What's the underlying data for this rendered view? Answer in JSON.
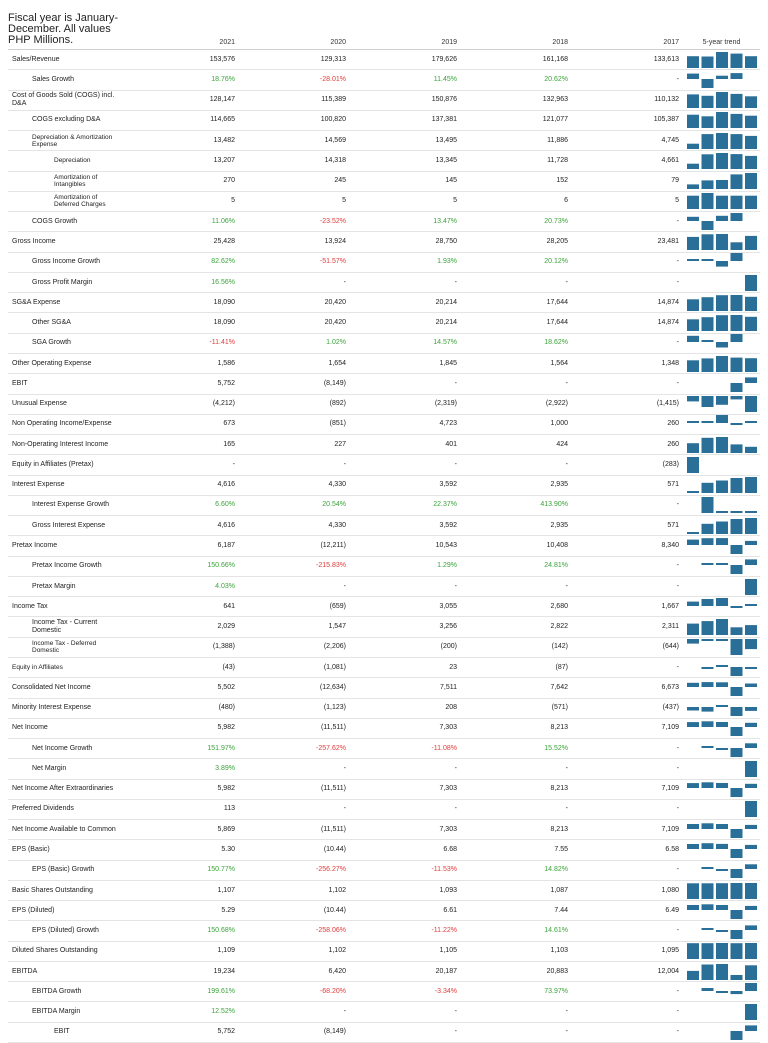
{
  "header": {
    "note": "Fiscal year is January-December. All values PHP Millions.",
    "years": [
      "2021",
      "2020",
      "2019",
      "2018",
      "2017"
    ],
    "trend_label": "5-year trend"
  },
  "colors": {
    "positive": "#3aa33a",
    "negative": "#e23b3b",
    "trend_bar": "#2a6f97"
  },
  "rows": [
    {
      "label": "Sales/Revenue",
      "indent": 0,
      "values": [
        "153,576",
        "129,313",
        "179,626",
        "161,168",
        "133,613"
      ],
      "trend": [
        0.74,
        0.72,
        1,
        0.9,
        0.74
      ]
    },
    {
      "label": "Sales Growth",
      "indent": 1,
      "values": [
        "18.76%",
        "-28.01%",
        "11.45%",
        "20.62%",
        "-"
      ],
      "trend": [
        0.67,
        -1,
        0.41,
        0.74,
        0
      ]
    },
    {
      "label": "Cost of Goods Sold (COGS) incl. D&A",
      "indent": 0,
      "values": [
        "128,147",
        "115,389",
        "150,876",
        "132,963",
        "110,132"
      ],
      "trend": [
        0.85,
        0.76,
        1,
        0.88,
        0.73
      ]
    },
    {
      "label": "COGS excluding D&A",
      "indent": 1,
      "values": [
        "114,665",
        "100,820",
        "137,381",
        "121,077",
        "105,387"
      ],
      "trend": [
        0.83,
        0.73,
        1,
        0.88,
        0.77
      ]
    },
    {
      "label": "Depreciation & Amortization Expense",
      "indent": 1,
      "values": [
        "13,482",
        "14,569",
        "13,495",
        "11,886",
        "4,745"
      ],
      "trend": [
        0.33,
        0.93,
        1,
        0.93,
        0.82
      ]
    },
    {
      "label": "Depreciation",
      "indent": 2,
      "values": [
        "13,207",
        "14,318",
        "13,345",
        "11,728",
        "4,661"
      ],
      "trend": [
        0.33,
        0.92,
        1,
        0.93,
        0.82
      ]
    },
    {
      "label": "Amortization of Intangibles",
      "indent": 2,
      "values": [
        "270",
        "245",
        "145",
        "152",
        "79"
      ],
      "trend": [
        0.29,
        0.54,
        0.56,
        0.91,
        1
      ]
    },
    {
      "label": "Amortization of Deferred Charges",
      "indent": 2,
      "values": [
        "5",
        "5",
        "5",
        "6",
        "5"
      ],
      "trend": [
        0.83,
        1,
        0.83,
        0.83,
        0.83
      ]
    },
    {
      "label": "COGS Growth",
      "indent": 1,
      "values": [
        "11.06%",
        "-23.52%",
        "13.47%",
        "20.73%",
        "-"
      ],
      "trend": [
        0.53,
        -1,
        0.65,
        1,
        0
      ]
    },
    {
      "label": "Gross Income",
      "indent": 0,
      "values": [
        "25,428",
        "13,924",
        "28,750",
        "28,205",
        "23,481"
      ],
      "trend": [
        0.82,
        0.98,
        1,
        0.48,
        0.88
      ]
    },
    {
      "label": "Gross Income Growth",
      "indent": 1,
      "values": [
        "82.62%",
        "-51.57%",
        "1.93%",
        "20.12%",
        "-"
      ],
      "trend": [
        0.24,
        0.02,
        -0.62,
        1,
        0
      ]
    },
    {
      "label": "Gross Profit Margin",
      "indent": 1,
      "values": [
        "16.56%",
        "-",
        "-",
        "-",
        "-"
      ],
      "trend": [
        0,
        0,
        0,
        0,
        1
      ]
    },
    {
      "label": "SG&A Expense",
      "indent": 0,
      "values": [
        "18,090",
        "20,420",
        "20,214",
        "17,644",
        "14,874"
      ],
      "trend": [
        0.73,
        0.86,
        0.99,
        1,
        0.89
      ]
    },
    {
      "label": "Other SG&A",
      "indent": 1,
      "values": [
        "18,090",
        "20,420",
        "20,214",
        "17,644",
        "14,874"
      ],
      "trend": [
        0.73,
        0.86,
        0.99,
        1,
        0.89
      ]
    },
    {
      "label": "SGA Growth",
      "indent": 1,
      "values": [
        "-11.41%",
        "1.02%",
        "14.57%",
        "18.62%",
        "-"
      ],
      "trend": [
        0.78,
        0.05,
        -0.61,
        1,
        0
      ]
    },
    {
      "label": "Other Operating Expense",
      "indent": 0,
      "values": [
        "1,586",
        "1,654",
        "1,845",
        "1,564",
        "1,348"
      ],
      "trend": [
        0.73,
        0.85,
        1,
        0.9,
        0.86
      ]
    },
    {
      "label": "EBIT",
      "indent": 0,
      "values": [
        "5,752",
        "(8,149)",
        "-",
        "-",
        "-"
      ],
      "trend": [
        0,
        0,
        0,
        -1,
        0.7
      ]
    },
    {
      "label": "Unusual Expense",
      "indent": 0,
      "values": [
        "(4,212)",
        "(892)",
        "(2,319)",
        "(2,922)",
        "(1,415)"
      ],
      "trend": [
        -0.34,
        -0.69,
        -0.55,
        -0.21,
        -1
      ]
    },
    {
      "label": "Non Operating Income/Expense",
      "indent": 0,
      "values": [
        "673",
        "(851)",
        "4,723",
        "1,000",
        "260"
      ],
      "trend": [
        0.06,
        0.21,
        1,
        -0.18,
        0.14
      ]
    },
    {
      "label": "Non-Operating Interest Income",
      "indent": 0,
      "values": [
        "165",
        "227",
        "401",
        "424",
        "260"
      ],
      "trend": [
        0.61,
        0.95,
        1,
        0.54,
        0.39
      ]
    },
    {
      "label": "Equity in Affiliates (Pretax)",
      "indent": 0,
      "values": [
        "-",
        "-",
        "-",
        "-",
        "(283)"
      ],
      "trend": [
        -1,
        0,
        0,
        0,
        0
      ]
    },
    {
      "label": "Interest Expense",
      "indent": 0,
      "values": [
        "4,616",
        "4,330",
        "3,592",
        "2,935",
        "571"
      ],
      "trend": [
        0.12,
        0.64,
        0.78,
        0.94,
        1
      ]
    },
    {
      "label": "Interest Expense Growth",
      "indent": 1,
      "values": [
        "6.60%",
        "20.54%",
        "22.37%",
        "413.90%",
        "-"
      ],
      "trend": [
        0,
        1,
        0.05,
        0.05,
        0.02
      ]
    },
    {
      "label": "Gross Interest Expense",
      "indent": 1,
      "values": [
        "4,616",
        "4,330",
        "3,592",
        "2,935",
        "571"
      ],
      "trend": [
        0.12,
        0.64,
        0.78,
        0.94,
        1
      ]
    },
    {
      "label": "Pretax Income",
      "indent": 0,
      "values": [
        "6,187",
        "(12,211)",
        "10,543",
        "10,408",
        "8,340"
      ],
      "trend": [
        0.68,
        0.85,
        0.86,
        -1,
        0.51
      ]
    },
    {
      "label": "Pretax Income Growth",
      "indent": 1,
      "values": [
        "150.66%",
        "-215.83%",
        "1.29%",
        "24.81%",
        "-"
      ],
      "trend": [
        0,
        0.11,
        0.01,
        -1,
        0.7
      ]
    },
    {
      "label": "Pretax Margin",
      "indent": 1,
      "values": [
        "4.03%",
        "-",
        "-",
        "-",
        "-"
      ],
      "trend": [
        0,
        0,
        0,
        0,
        1
      ]
    },
    {
      "label": "Income Tax",
      "indent": 0,
      "values": [
        "641",
        "(659)",
        "3,055",
        "2,680",
        "1,667"
      ],
      "trend": [
        0.55,
        0.88,
        1,
        -0.22,
        0.21
      ]
    },
    {
      "label": "Income Tax - Current Domestic",
      "indent": 1,
      "values": [
        "2,029",
        "1,547",
        "3,256",
        "2,822",
        "2,311"
      ],
      "trend": [
        0.71,
        0.87,
        1,
        0.48,
        0.62
      ]
    },
    {
      "label": "Income Tax - Deferred Domestic",
      "indent": 1,
      "values": [
        "(1,388)",
        "(2,206)",
        "(200)",
        "(142)",
        "(644)"
      ],
      "trend": [
        -0.29,
        -0.06,
        -0.09,
        -1,
        -0.63
      ]
    },
    {
      "label": "Equity in Affiliates",
      "indent": 0,
      "values": [
        "(43)",
        "(1,081)",
        "23",
        "(87)",
        "-"
      ],
      "trend": [
        0,
        -0.08,
        0.02,
        -1,
        -0.04
      ]
    },
    {
      "label": "Consolidated Net Income",
      "indent": 0,
      "values": [
        "5,502",
        "(12,634)",
        "7,511",
        "7,642",
        "6,673"
      ],
      "trend": [
        0.53,
        0.61,
        0.59,
        -1,
        0.44
      ]
    },
    {
      "label": "Minority Interest Expense",
      "indent": 0,
      "values": [
        "(480)",
        "(1,123)",
        "208",
        "(571)",
        "(437)"
      ],
      "trend": [
        -0.39,
        -0.51,
        0.19,
        -1,
        -0.43
      ]
    },
    {
      "label": "Net Income",
      "indent": 0,
      "values": [
        "5,982",
        "(11,511)",
        "7,303",
        "8,213",
        "7,109"
      ],
      "trend": [
        0.61,
        0.71,
        0.63,
        -1,
        0.52
      ]
    },
    {
      "label": "Net Income Growth",
      "indent": 1,
      "values": [
        "151.97%",
        "-257.62%",
        "-11.08%",
        "15.52%",
        "-"
      ],
      "trend": [
        0,
        0.06,
        -0.04,
        -1,
        0.59
      ]
    },
    {
      "label": "Net Margin",
      "indent": 1,
      "values": [
        "3.89%",
        "-",
        "-",
        "-",
        "-"
      ],
      "trend": [
        0,
        0,
        0,
        0,
        1
      ]
    },
    {
      "label": "Net Income After Extraordinaries",
      "indent": 0,
      "values": [
        "5,982",
        "(11,511)",
        "7,303",
        "8,213",
        "7,109"
      ],
      "trend": [
        0.61,
        0.71,
        0.63,
        -1,
        0.52
      ]
    },
    {
      "label": "Preferred Dividends",
      "indent": 0,
      "values": [
        "113",
        "-",
        "-",
        "-",
        "-"
      ],
      "trend": [
        0,
        0,
        0,
        0,
        1
      ]
    },
    {
      "label": "Net Income Available to Common",
      "indent": 0,
      "values": [
        "5,869",
        "(11,511)",
        "7,303",
        "8,213",
        "7,109"
      ],
      "trend": [
        0.62,
        0.71,
        0.63,
        -1,
        0.51
      ]
    },
    {
      "label": "EPS (Basic)",
      "indent": 0,
      "values": [
        "5.30",
        "(10.44)",
        "6.68",
        "7.55",
        "6.58"
      ],
      "trend": [
        0.63,
        0.72,
        0.64,
        -1,
        0.51
      ]
    },
    {
      "label": "EPS (Basic) Growth",
      "indent": 1,
      "values": [
        "150.77%",
        "-256.27%",
        "-11.53%",
        "14.82%",
        "-"
      ],
      "trend": [
        0,
        0.06,
        -0.04,
        -1,
        0.59
      ]
    },
    {
      "label": "Basic Shares Outstanding",
      "indent": 0,
      "values": [
        "1,107",
        "1,102",
        "1,093",
        "1,087",
        "1,080"
      ],
      "trend": [
        0.98,
        0.98,
        0.99,
        1,
        1
      ]
    },
    {
      "label": "EPS (Diluted)",
      "indent": 0,
      "values": [
        "5.29",
        "(10.44)",
        "6.61",
        "7.44",
        "6.49"
      ],
      "trend": [
        0.62,
        0.71,
        0.63,
        -1,
        0.51
      ]
    },
    {
      "label": "EPS (Diluted) Growth",
      "indent": 1,
      "values": [
        "150.68%",
        "-258.06%",
        "-11.22%",
        "14.61%",
        "-"
      ],
      "trend": [
        0,
        0.06,
        -0.04,
        -1,
        0.58
      ]
    },
    {
      "label": "Diluted Shares Outstanding",
      "indent": 0,
      "values": [
        "1,109",
        "1,102",
        "1,105",
        "1,103",
        "1,095"
      ],
      "trend": [
        0.99,
        0.99,
        1,
        0.99,
        1
      ]
    },
    {
      "label": "EBITDA",
      "indent": 0,
      "values": [
        "19,234",
        "6,420",
        "20,187",
        "20,883",
        "12,004"
      ],
      "trend": [
        0.57,
        0.97,
        1,
        0.31,
        0.92
      ]
    },
    {
      "label": "EBITDA Growth",
      "indent": 1,
      "values": [
        "199.61%",
        "-68.20%",
        "-3.34%",
        "73.97%",
        "-"
      ],
      "trend": [
        0,
        0.37,
        -0.02,
        -0.34,
        1
      ]
    },
    {
      "label": "EBITDA Margin",
      "indent": 1,
      "values": [
        "12.52%",
        "-",
        "-",
        "-",
        "-"
      ],
      "trend": [
        0,
        0,
        0,
        0,
        1
      ]
    },
    {
      "label": "EBIT",
      "indent": 2,
      "values": [
        "5,752",
        "(8,149)",
        "-",
        "-",
        "-"
      ],
      "trend": [
        0,
        0,
        0,
        -1,
        0.7
      ]
    }
  ]
}
